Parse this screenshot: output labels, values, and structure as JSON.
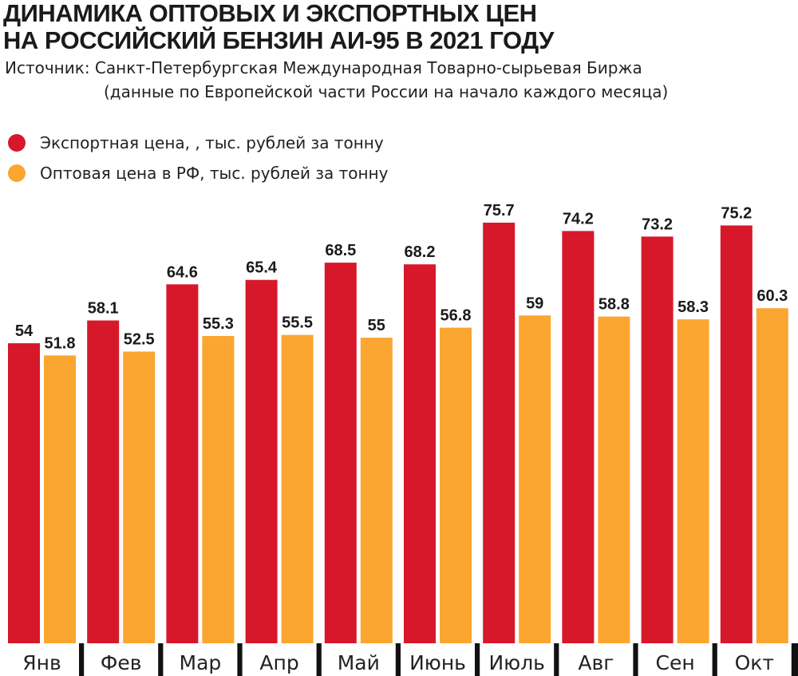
{
  "chart_data": {
    "type": "bar",
    "title": "ДИНАМИКА ОПТОВЫХ И ЭКСПОРТНЫХ ЦЕН НА РОССИЙСКИЙ БЕНЗИН АИ-95 В 2021 ГОДУ",
    "title_lines": [
      "ДИНАМИКА ОПТОВЫХ И ЭКСПОРТНЫХ ЦЕН",
      "НА РОССИЙСКИЙ БЕНЗИН АИ-95 В 2021 ГОДУ"
    ],
    "source_lines": [
      "Источник: Санкт-Петербургская Международная Товарно-сырьевая Биржа",
      "(данные по Европейской части России на начало каждого месяца)"
    ],
    "categories": [
      "Янв",
      "Фев",
      "Мар",
      "Апр",
      "Май",
      "Июнь",
      "Июль",
      "Авг",
      "Сен",
      "Окт"
    ],
    "series": [
      {
        "name": "Экспортная цена, , тыс. рублей за тонну",
        "color": "#d7182a",
        "values": [
          54,
          58.1,
          64.6,
          65.4,
          68.5,
          68.2,
          75.7,
          74.2,
          73.2,
          75.2
        ]
      },
      {
        "name": "Оптовая цена в РФ, тыс. рублей за тонну",
        "color": "#fba630",
        "values": [
          51.8,
          52.5,
          55.3,
          55.5,
          55,
          56.8,
          59,
          58.8,
          58.3,
          60.3
        ]
      }
    ],
    "xlabel": "",
    "ylabel": "",
    "ylim": [
      0,
      75.7
    ],
    "legend_position": "top-left",
    "grid": false,
    "data_labels": true
  }
}
